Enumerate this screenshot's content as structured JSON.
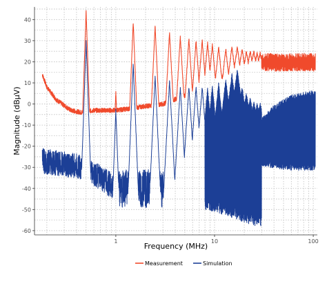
{
  "chart_data": {
    "type": "line",
    "xlabel": "Frequency (MHz)",
    "ylabel": "Magnitude (dBµV)",
    "x_scale": "log",
    "xlim": [
      0.15,
      110
    ],
    "ylim": [
      -62,
      46
    ],
    "x_ticks": [
      1,
      10,
      100
    ],
    "x_tick_labels": [
      "1",
      "10",
      "100"
    ],
    "y_ticks": [
      -60,
      -50,
      -40,
      -30,
      -20,
      -10,
      0,
      10,
      20,
      30,
      40
    ],
    "y_tick_labels": [
      "-60",
      "-50",
      "-40",
      "-30",
      "-20",
      "-10",
      "0",
      "10",
      "20",
      "30",
      "40"
    ],
    "grid": true,
    "legend_position": "bottom",
    "harmonic_fundamental_mhz": 0.5,
    "series": [
      {
        "name": "Measurement",
        "color": "#f04a2c",
        "baseline": [
          [
            0.18,
            14
          ],
          [
            0.2,
            8
          ],
          [
            0.25,
            2
          ],
          [
            0.35,
            -3
          ],
          [
            0.45,
            -4
          ],
          [
            0.6,
            -3
          ],
          [
            1.0,
            -3
          ],
          [
            1.5,
            -2
          ],
          [
            2.0,
            -1
          ],
          [
            3.0,
            0
          ],
          [
            5.0,
            4
          ],
          [
            7.0,
            6
          ],
          [
            10.0,
            12
          ],
          [
            15.0,
            14
          ],
          [
            20.0,
            16
          ],
          [
            30.0,
            20
          ],
          [
            50.0,
            20
          ],
          [
            100.0,
            19
          ]
        ],
        "harmonic_peaks": [
          [
            0.5,
            44
          ],
          [
            1.0,
            6
          ],
          [
            1.5,
            39
          ],
          [
            2.5,
            37
          ],
          [
            3.5,
            34
          ],
          [
            4.5,
            32
          ],
          [
            5.5,
            31
          ],
          [
            6.5,
            30
          ],
          [
            7.5,
            30
          ],
          [
            8.5,
            29
          ],
          [
            9.5,
            28
          ],
          [
            11.0,
            27
          ],
          [
            13.0,
            26
          ],
          [
            15.0,
            27
          ],
          [
            17.0,
            27
          ],
          [
            19.0,
            26
          ],
          [
            21.0,
            25
          ],
          [
            23.0,
            25
          ],
          [
            25.0,
            25
          ],
          [
            27.0,
            24
          ],
          [
            29.0,
            24
          ]
        ]
      },
      {
        "name": "Simulation",
        "color": "#1c3f96",
        "baseline": [
          [
            0.18,
            -27
          ],
          [
            0.25,
            -28
          ],
          [
            0.35,
            -29
          ],
          [
            0.45,
            -30
          ],
          [
            0.7,
            -35
          ],
          [
            1.0,
            -40
          ],
          [
            2.0,
            -40
          ],
          [
            3.0,
            -40
          ],
          [
            5.0,
            -40
          ],
          [
            7.0,
            -40
          ],
          [
            10.0,
            -40
          ],
          [
            20.0,
            -45
          ],
          [
            30.0,
            -48
          ]
        ],
        "harmonic_peaks": [
          [
            0.5,
            30
          ],
          [
            1.0,
            -3
          ],
          [
            1.5,
            19
          ],
          [
            2.5,
            13
          ],
          [
            3.5,
            11
          ],
          [
            4.5,
            8
          ],
          [
            5.5,
            8
          ],
          [
            6.5,
            8
          ],
          [
            7.5,
            8
          ],
          [
            8.5,
            8
          ],
          [
            9.5,
            9
          ],
          [
            11.0,
            10
          ],
          [
            13.0,
            12
          ],
          [
            15.0,
            14
          ],
          [
            17.0,
            16
          ],
          [
            19.0,
            8
          ],
          [
            21.0,
            5
          ],
          [
            23.0,
            3
          ],
          [
            25.0,
            1
          ],
          [
            27.0,
            0
          ],
          [
            29.0,
            0
          ]
        ],
        "envelope_above_30mhz": {
          "x": [
            30,
            40,
            60,
            100
          ],
          "upper": [
            -8,
            -2,
            3,
            5
          ],
          "lower": [
            -28,
            -29,
            -30,
            -30
          ]
        }
      }
    ]
  }
}
